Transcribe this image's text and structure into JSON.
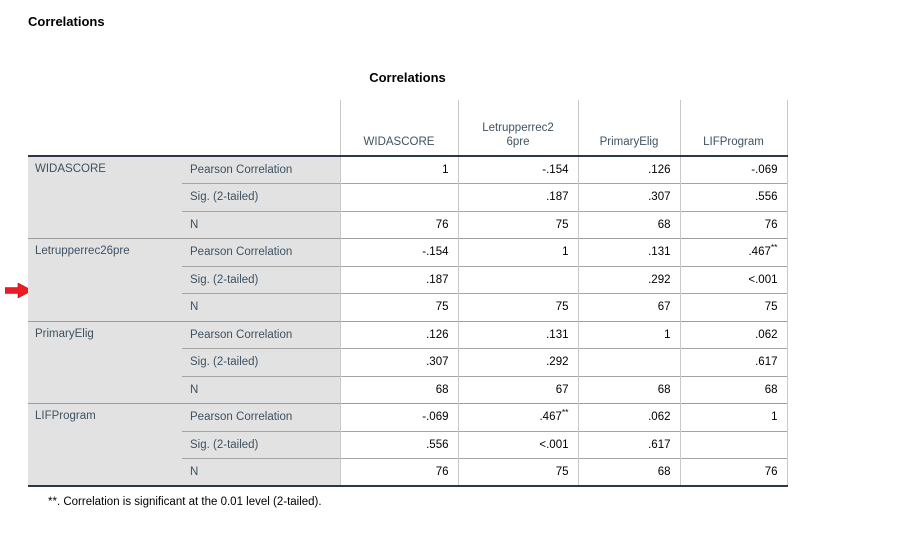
{
  "page": {
    "heading": "Correlations"
  },
  "table": {
    "title": "Correlations",
    "columns": [
      {
        "label": "WIDASCORE"
      },
      {
        "label": "Letrupperrec2\n6pre"
      },
      {
        "label": "PrimaryElig"
      },
      {
        "label": "LIFProgram"
      }
    ],
    "groups": [
      {
        "variable": "WIDASCORE",
        "rows": [
          {
            "label": "Pearson Correlation",
            "cells": [
              {
                "v": "1"
              },
              {
                "v": "-.154"
              },
              {
                "v": ".126"
              },
              {
                "v": "-.069"
              }
            ]
          },
          {
            "label": "Sig. (2-tailed)",
            "cells": [
              {
                "v": ""
              },
              {
                "v": ".187"
              },
              {
                "v": ".307"
              },
              {
                "v": ".556"
              }
            ]
          },
          {
            "label": "N",
            "cells": [
              {
                "v": "76"
              },
              {
                "v": "75"
              },
              {
                "v": "68"
              },
              {
                "v": "76"
              }
            ]
          }
        ]
      },
      {
        "variable": "Letrupperrec26pre",
        "rows": [
          {
            "label": "Pearson Correlation",
            "cells": [
              {
                "v": "-.154"
              },
              {
                "v": "1"
              },
              {
                "v": ".131"
              },
              {
                "v": ".467",
                "sup": "**"
              }
            ]
          },
          {
            "label": "Sig. (2-tailed)",
            "cells": [
              {
                "v": ".187"
              },
              {
                "v": ""
              },
              {
                "v": ".292"
              },
              {
                "v": "<.001"
              }
            ]
          },
          {
            "label": "N",
            "cells": [
              {
                "v": "75"
              },
              {
                "v": "75"
              },
              {
                "v": "67"
              },
              {
                "v": "75"
              }
            ]
          }
        ]
      },
      {
        "variable": "PrimaryElig",
        "rows": [
          {
            "label": "Pearson Correlation",
            "cells": [
              {
                "v": ".126"
              },
              {
                "v": ".131"
              },
              {
                "v": "1"
              },
              {
                "v": ".062"
              }
            ]
          },
          {
            "label": "Sig. (2-tailed)",
            "cells": [
              {
                "v": ".307"
              },
              {
                "v": ".292"
              },
              {
                "v": ""
              },
              {
                "v": ".617"
              }
            ]
          },
          {
            "label": "N",
            "cells": [
              {
                "v": "68"
              },
              {
                "v": "67"
              },
              {
                "v": "68"
              },
              {
                "v": "68"
              }
            ]
          }
        ]
      },
      {
        "variable": "LIFProgram",
        "rows": [
          {
            "label": "Pearson Correlation",
            "cells": [
              {
                "v": "-.069"
              },
              {
                "v": ".467",
                "sup": "**"
              },
              {
                "v": ".062"
              },
              {
                "v": "1"
              }
            ]
          },
          {
            "label": "Sig. (2-tailed)",
            "cells": [
              {
                "v": ".556"
              },
              {
                "v": "<.001"
              },
              {
                "v": ".617"
              },
              {
                "v": ""
              }
            ]
          },
          {
            "label": "N",
            "cells": [
              {
                "v": "76"
              },
              {
                "v": "75"
              },
              {
                "v": "68"
              },
              {
                "v": "76"
              }
            ]
          }
        ]
      }
    ],
    "footnote": "**. Correlation is significant at the 0.01 level (2-tailed)."
  },
  "annotation": {
    "arrow_icon": "red-right-arrow",
    "arrow_color": "#ec1c24"
  },
  "colors": {
    "heavy_border": "#283a4a",
    "stub_background": "#e2e2e2",
    "label_text": "#3e5262",
    "grid_horizontal": "#9c9c9c",
    "grid_vertical": "#c8c8c8"
  }
}
